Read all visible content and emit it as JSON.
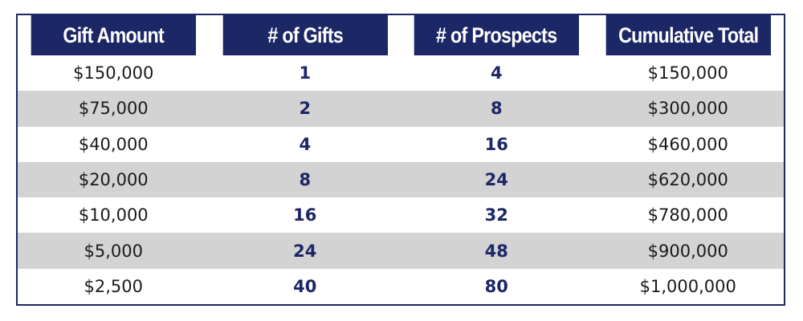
{
  "table": {
    "headers": [
      "Gift Amount",
      "# of Gifts",
      "# of Prospects",
      "Cumulative Total"
    ],
    "rows": [
      {
        "gift_amount": "$150,000",
        "num_gifts": "1",
        "num_prospects": "4",
        "cumulative_total": "$150,000"
      },
      {
        "gift_amount": "$75,000",
        "num_gifts": "2",
        "num_prospects": "8",
        "cumulative_total": "$300,000"
      },
      {
        "gift_amount": "$40,000",
        "num_gifts": "4",
        "num_prospects": "16",
        "cumulative_total": "$460,000"
      },
      {
        "gift_amount": "$20,000",
        "num_gifts": "8",
        "num_prospects": "24",
        "cumulative_total": "$620,000"
      },
      {
        "gift_amount": "$10,000",
        "num_gifts": "16",
        "num_prospects": "32",
        "cumulative_total": "$780,000"
      },
      {
        "gift_amount": "$5,000",
        "num_gifts": "24",
        "num_prospects": "48",
        "cumulative_total": "$900,000"
      },
      {
        "gift_amount": "$2,500",
        "num_gifts": "40",
        "num_prospects": "80",
        "cumulative_total": "$1,000,000"
      }
    ]
  },
  "colors": {
    "header_background": "#1c2766",
    "header_text": "#ffffff",
    "shaded_row": "#d3d3d3",
    "count_text": "#1c2766"
  }
}
